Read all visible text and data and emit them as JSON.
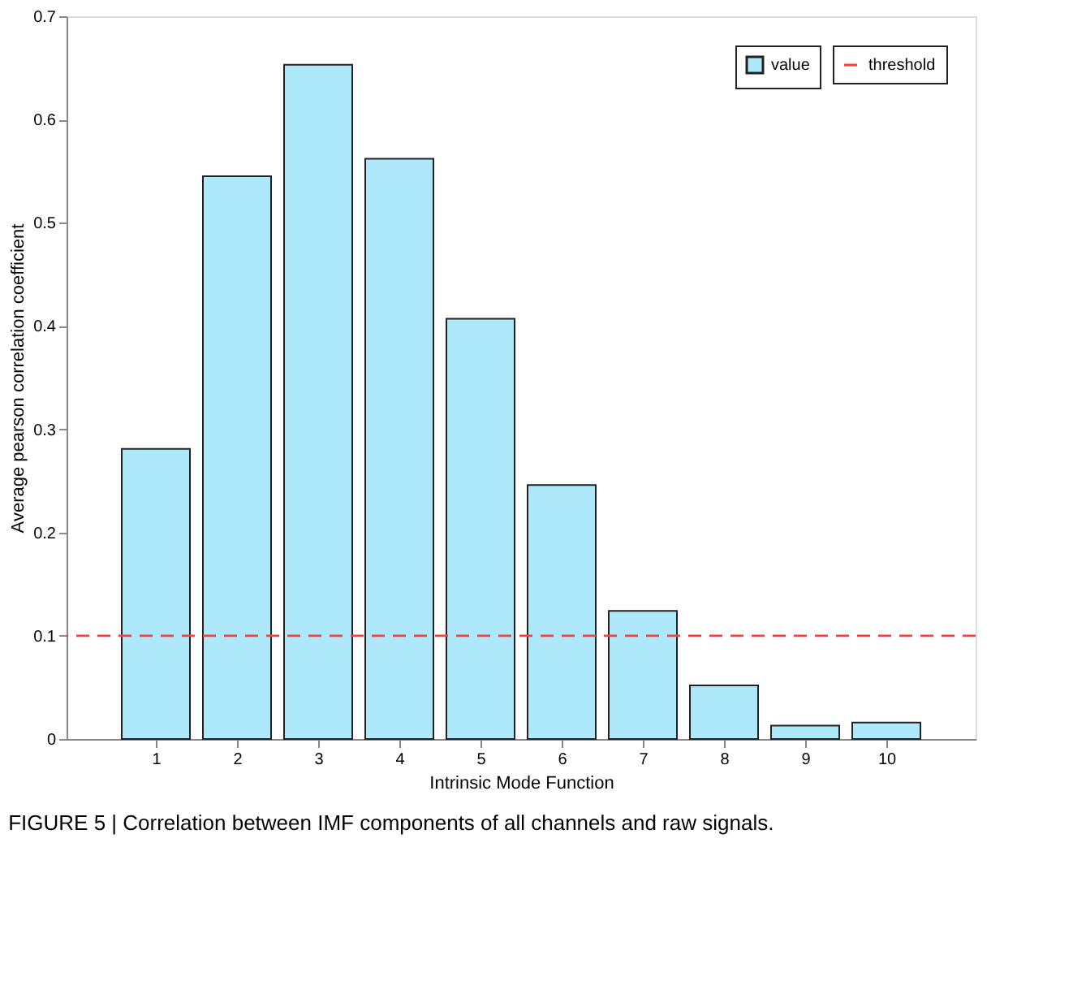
{
  "chart_data": {
    "type": "bar",
    "xlabel": "Intrinsic Mode Function",
    "ylabel": "Average pearson correlation coefficient",
    "categories": [
      "1",
      "2",
      "3",
      "4",
      "5",
      "6",
      "7",
      "8",
      "9",
      "10"
    ],
    "series": [
      {
        "name": "value",
        "color": "#aee9fb",
        "values": [
          0.281,
          0.545,
          0.653,
          0.562,
          0.407,
          0.246,
          0.124,
          0.052,
          0.013,
          0.016
        ]
      }
    ],
    "ylim": [
      0,
      0.7
    ],
    "yticks": [
      0,
      0.1,
      0.2,
      0.3,
      0.4,
      0.5,
      0.6,
      0.7
    ],
    "grid": false,
    "legend": "top right",
    "ref_lines": [
      {
        "axis": "y",
        "value": 0.1,
        "label": "threshold",
        "color": "#ff3b3b",
        "line_style": "dashed"
      }
    ],
    "annotations": [
      "FIGURE 5 | Correlation between IMF components of all channels and raw signals."
    ]
  }
}
